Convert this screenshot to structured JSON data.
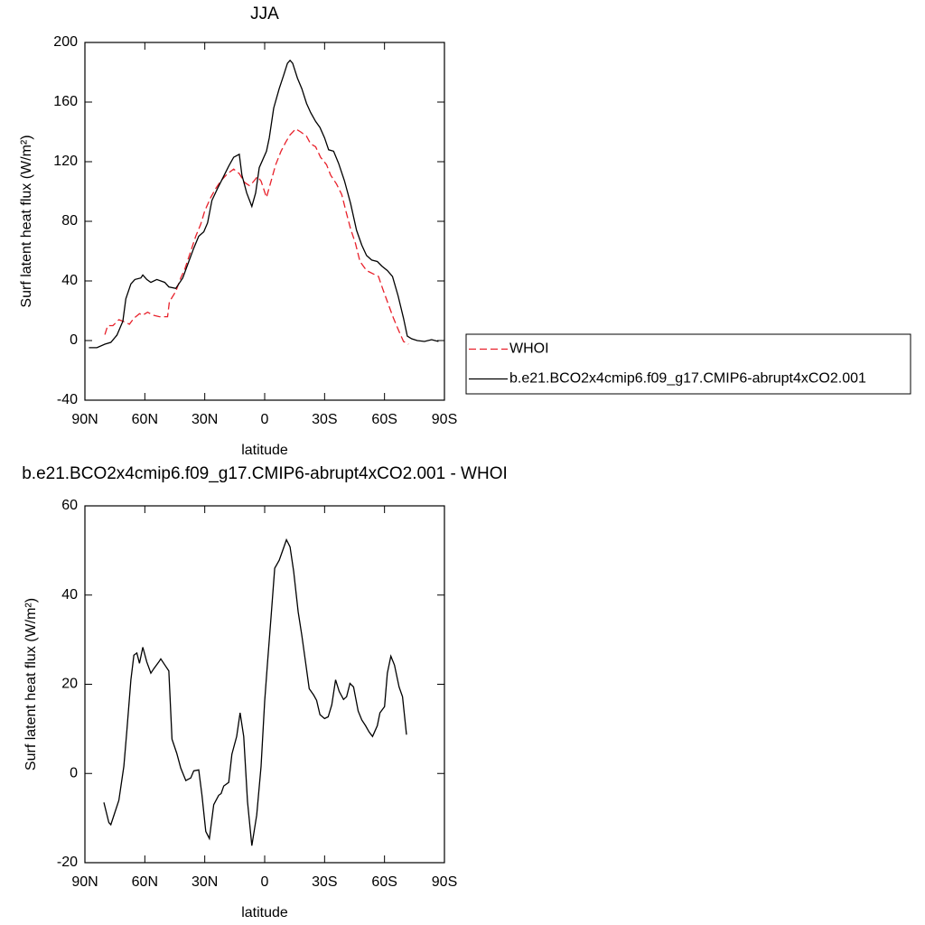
{
  "chart_data": [
    {
      "type": "line",
      "title": "JJA",
      "ylabel": "Surf latent heat flux (W/m²)",
      "xlabel": "latitude",
      "xlim": [
        90,
        -90
      ],
      "xticks": [
        {
          "value": 90,
          "label": "90N"
        },
        {
          "value": 60,
          "label": "60N"
        },
        {
          "value": 30,
          "label": "30N"
        },
        0,
        {
          "value": -30,
          "label": "30S"
        },
        {
          "value": -60,
          "label": "60S"
        },
        {
          "value": -90,
          "label": "90S"
        }
      ],
      "ylim": [
        -40,
        200
      ],
      "yticks": [
        -40,
        0,
        40,
        80,
        120,
        160,
        200
      ],
      "legend": "right",
      "series": [
        {
          "name": "WHOI",
          "color": "#e8202a",
          "linestyle": "dashed",
          "x": [
            80,
            78.6,
            76,
            73,
            71,
            67.7,
            65.5,
            62.7,
            61,
            58.6,
            56,
            52.7,
            48.6,
            47.7,
            44.5,
            42,
            40,
            37,
            34.5,
            32,
            30,
            27,
            24.5,
            22,
            18.6,
            15.5,
            12.7,
            10,
            7.7,
            6,
            3.6,
            1.8,
            -0.9,
            -3.2,
            -5.5,
            -8.2,
            -10.5,
            -12.7,
            -15.5,
            -18,
            -21,
            -23,
            -25.5,
            -28,
            -31,
            -33,
            -36,
            -38.6,
            -41,
            -43,
            -45.5,
            -47.7,
            -51,
            -54,
            -57,
            -59,
            -62,
            -64.5,
            -67,
            -69.5,
            -72
          ],
          "values": [
            4,
            10,
            10,
            14,
            13,
            11,
            15,
            18,
            17,
            19,
            17,
            16,
            16,
            26,
            33,
            42,
            48,
            60,
            70,
            78,
            87,
            96,
            102,
            107,
            112,
            115,
            112,
            106,
            104,
            106,
            110,
            107,
            96,
            107,
            118,
            127,
            133,
            138,
            142,
            140,
            137,
            132,
            130,
            123,
            118,
            111,
            105,
            98,
            85,
            75,
            65,
            53,
            47,
            45,
            43,
            35,
            24,
            15,
            7,
            -0.6,
            -2.4
          ]
        },
        {
          "name": "b.e21.BCO2x4cmip6.f09_g17.CMIP6-abrupt4xCO2.001",
          "color": "#000000",
          "linestyle": "solid",
          "x": [
            88,
            84,
            80,
            77,
            74,
            71,
            69.5,
            67,
            65,
            62,
            61,
            59,
            57,
            54,
            50,
            48,
            44.5,
            41,
            38,
            35.5,
            33,
            30.5,
            28.6,
            26.4,
            23.6,
            21,
            18,
            15.5,
            12.7,
            11.4,
            9,
            6.4,
            4.5,
            2.7,
            -0.9,
            -2.3,
            -4.5,
            -7.3,
            -9.5,
            -11.4,
            -12.7,
            -14,
            -16.4,
            -18.6,
            -21,
            -23,
            -25.5,
            -27.7,
            -30,
            -32,
            -34.5,
            -37,
            -40,
            -43,
            -46,
            -48.6,
            -51,
            -53.6,
            -56.4,
            -58.6,
            -61.4,
            -64,
            -66.8,
            -69.5,
            -71.4,
            -73.6,
            -76.4,
            -80,
            -83.6,
            -87
          ],
          "values": [
            -4.8,
            -4.8,
            -2.4,
            -1.2,
            3.6,
            13,
            28,
            38,
            41,
            42,
            44,
            41,
            39,
            41,
            39,
            36,
            35,
            42,
            53,
            62,
            70,
            73,
            79,
            94,
            102,
            109,
            117,
            123,
            125,
            111,
            99,
            90,
            99,
            116,
            127,
            136,
            156,
            169,
            178,
            186,
            188,
            186,
            176,
            169,
            159,
            153,
            147,
            143,
            136,
            128,
            127,
            119,
            107,
            92,
            74,
            64,
            57,
            54,
            53,
            50,
            47,
            43,
            30,
            15,
            3,
            1.2,
            0,
            -0.6,
            0.6,
            -0.6
          ]
        }
      ]
    },
    {
      "type": "line",
      "title": "b.e21.BCO2x4cmip6.f09_g17.CMIP6-abrupt4xCO2.001 - WHOI",
      "ylabel": "Surf latent heat flux (W/m²)",
      "xlabel": "latitude",
      "xlim": [
        90,
        -90
      ],
      "xticks": [
        {
          "value": 90,
          "label": "90N"
        },
        {
          "value": 60,
          "label": "60N"
        },
        {
          "value": 30,
          "label": "30N"
        },
        0,
        {
          "value": -30,
          "label": "30S"
        },
        {
          "value": -60,
          "label": "60S"
        },
        {
          "value": -90,
          "label": "90S"
        }
      ],
      "ylim": [
        -20,
        60
      ],
      "yticks": [
        -20,
        0,
        20,
        40,
        60
      ],
      "series": [
        {
          "color": "#000000",
          "linestyle": "solid",
          "x": [
            80.5,
            78,
            77,
            73,
            70.5,
            69,
            67,
            65.5,
            64,
            62.7,
            61,
            59,
            57,
            55.5,
            53,
            52,
            49.5,
            48,
            46.4,
            44,
            42,
            39.5,
            37,
            35.5,
            33,
            31.4,
            29.5,
            27.7,
            25.5,
            23,
            21.8,
            20.5,
            18,
            16.4,
            14,
            12.3,
            10.5,
            8.6,
            6.4,
            4,
            1.8,
            0,
            -1.4,
            -3.2,
            -5,
            -7.3,
            -9.5,
            -10.9,
            -12.7,
            -14.5,
            -16.8,
            -18.6,
            -20.5,
            -22.3,
            -24.5,
            -26,
            -27.7,
            -30,
            -31.8,
            -33.6,
            -35.5,
            -37.3,
            -39.5,
            -41,
            -42.7,
            -44.5,
            -46.8,
            -48.6,
            -50.5,
            -52.3,
            -54,
            -56.4,
            -57.7,
            -60,
            -61.4,
            -63.2,
            -65,
            -67.3,
            -69,
            -71
          ],
          "values": [
            -6.5,
            -11,
            -11.5,
            -6,
            1.6,
            9.5,
            21,
            26.5,
            27,
            24.7,
            28.3,
            25,
            22.5,
            23.5,
            25,
            25.7,
            24,
            23,
            7.7,
            4.5,
            1.2,
            -1.6,
            -1,
            0.6,
            0.8,
            -4.9,
            -13,
            -14.6,
            -7,
            -4.9,
            -4.5,
            -2.8,
            -2,
            4.3,
            8.3,
            13.6,
            8.3,
            -6.3,
            -16.2,
            -9.3,
            1.6,
            16.2,
            24.7,
            35.2,
            46,
            47.8,
            50.6,
            52.4,
            50.8,
            45.3,
            36.2,
            31,
            24.9,
            19,
            17.6,
            16.4,
            13.2,
            12.3,
            12.7,
            15.4,
            21,
            18.4,
            16.6,
            17.2,
            20.2,
            19.4,
            14,
            12,
            10.7,
            9.3,
            8.3,
            10.7,
            13.6,
            15,
            22.5,
            26.3,
            24.3,
            19.4,
            17.2,
            8.7
          ]
        }
      ]
    }
  ]
}
